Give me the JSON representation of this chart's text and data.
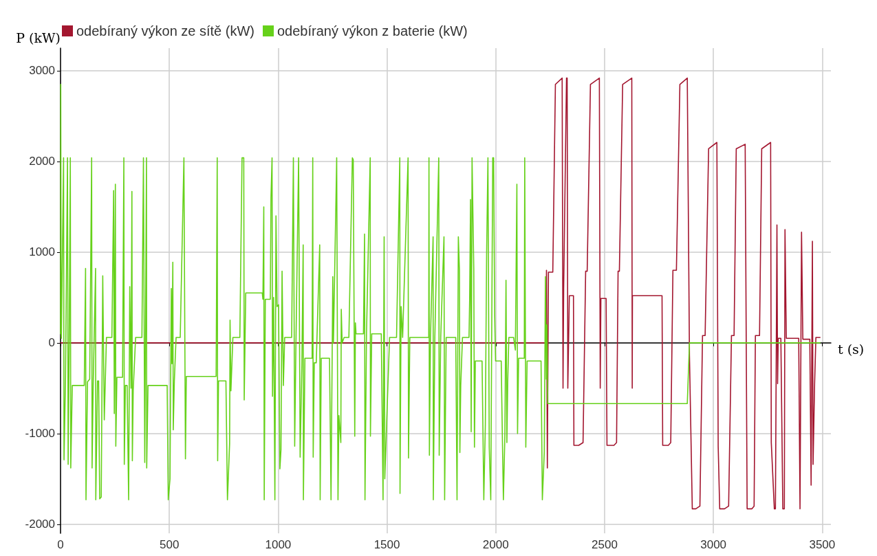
{
  "chart_data": {
    "type": "line",
    "xlabel": "t (s)",
    "ylabel": "P (kW)",
    "xlim": [
      0,
      3540
    ],
    "xticks": [
      0,
      500,
      1000,
      1500,
      2000,
      2500,
      3000,
      3500
    ],
    "ylim": [
      -2100,
      3250
    ],
    "yticks": [
      -2000,
      -1000,
      0,
      1000,
      2000,
      3000
    ],
    "grid": true,
    "legend": "top left",
    "marker": "none",
    "line_style": "solid",
    "series": [
      {
        "name": "odebíraný výkon ze sítě (kW)",
        "color": "#a3162f",
        "x": [
          0,
          2231,
          2233,
          2237,
          2242,
          2262,
          2274,
          2305,
          2309,
          2312,
          2325,
          2328,
          2331,
          2338,
          2357,
          2359,
          2381,
          2401,
          2413,
          2420,
          2435,
          2476,
          2480,
          2483,
          2507,
          2511,
          2543,
          2555,
          2562,
          2568,
          2583,
          2625,
          2627,
          2628,
          2764,
          2767,
          2793,
          2804,
          2814,
          2830,
          2846,
          2880,
          2890,
          2903,
          2919,
          2938,
          2950,
          2962,
          2978,
          3016,
          3022,
          3029,
          3051,
          3070,
          3083,
          3095,
          3105,
          3146,
          3155,
          3177,
          3187,
          3193,
          3212,
          3222,
          3263,
          3266,
          3280,
          3285,
          3292,
          3295,
          3298,
          3310,
          3319,
          3326,
          3329,
          3335,
          3392,
          3398,
          3405,
          3411,
          3443,
          3449,
          3455,
          3458,
          3465,
          3471,
          3490
        ],
        "values": [
          0,
          0,
          800,
          -1380,
          780,
          780,
          2850,
          2920,
          -500,
          600,
          2920,
          2920,
          -500,
          520,
          520,
          -1130,
          -1130,
          -1100,
          790,
          790,
          2850,
          2920,
          -500,
          490,
          490,
          -1130,
          -1130,
          -1100,
          790,
          790,
          2850,
          2920,
          -500,
          520,
          520,
          -1130,
          -1130,
          -1100,
          800,
          800,
          2850,
          2920,
          -140,
          -1830,
          -1830,
          -1800,
          80,
          80,
          2140,
          2210,
          -1140,
          -1830,
          -1830,
          -1800,
          80,
          80,
          2140,
          2190,
          -1830,
          -1830,
          -1800,
          80,
          80,
          2140,
          2210,
          -1100,
          -1830,
          -1830,
          1300,
          -450,
          50,
          50,
          -1830,
          -1830,
          1250,
          50,
          50,
          -1830,
          1220,
          40,
          40,
          -1570,
          1120,
          -1340,
          -460,
          60,
          60
        ]
      },
      {
        "name": "odebíraný výkon z baterie (kW)",
        "color": "#66d11a",
        "x": [
          0,
          1,
          3,
          4,
          14,
          16,
          23,
          32,
          35,
          40,
          45,
          47,
          54,
          109,
          115,
          117,
          124,
          134,
          143,
          145,
          150,
          161,
          162,
          170,
          175,
          180,
          187,
          194,
          201,
          211,
          236,
          244,
          247,
          252,
          254,
          259,
          285,
          291,
          293,
          298,
          306,
          313,
          318,
          324,
          328,
          330,
          334,
          345,
          374,
          381,
          387,
          395,
          396,
          402,
          490,
          495,
          503,
          509,
          512,
          516,
          518,
          523,
          531,
          550,
          567,
          574,
          578,
          715,
          720,
          722,
          726,
          760,
          767,
          777,
          779,
          783,
          792,
          824,
          834,
          842,
          844,
          851,
          927,
          930,
          934,
          936,
          941,
          964,
          967,
          972,
          974,
          979,
          985,
          990,
          995,
          1002,
          1008,
          1013,
          1018,
          1024,
          1030,
          1062,
          1070,
          1076,
          1081,
          1094,
          1101,
          1109,
          1115,
          1116,
          1123,
          1156,
          1159,
          1161,
          1166,
          1175,
          1191,
          1193,
          1198,
          1236,
          1243,
          1251,
          1254,
          1269,
          1275,
          1279,
          1288,
          1290,
          1294,
          1303,
          1325,
          1341,
          1345,
          1352,
          1355,
          1358,
          1392,
          1397,
          1399,
          1406,
          1423,
          1424,
          1430,
          1474,
          1482,
          1487,
          1490,
          1500,
          1512,
          1544,
          1559,
          1560,
          1565,
          1572,
          1597,
          1599,
          1605,
          1692,
          1693,
          1695,
          1700,
          1712,
          1713,
          1720,
          1738,
          1740,
          1747,
          1762,
          1765,
          1772,
          1816,
          1822,
          1828,
          1833,
          1835,
          1839,
          1847,
          1877,
          1880,
          1884,
          1887,
          1891,
          1899,
          1902,
          1906,
          1937,
          1945,
          1952,
          1958,
          1964,
          1970,
          1977,
          1986,
          1990,
          1995,
          1999,
          2025,
          2030,
          2035,
          2042,
          2047,
          2051,
          2055,
          2060,
          2082,
          2090,
          2097,
          2100,
          2105,
          2131,
          2133,
          2138,
          2144,
          2208,
          2214,
          2223,
          2228,
          2232,
          2235,
          2239,
          2880,
          2890,
          3490
        ],
        "values": [
          100,
          2850,
          80,
          50,
          2040,
          -1290,
          -380,
          2040,
          -1340,
          50,
          2040,
          -1380,
          -470,
          -470,
          820,
          -1730,
          -430,
          -400,
          2040,
          -1380,
          -470,
          820,
          -1730,
          -420,
          -420,
          -1720,
          -1700,
          740,
          -850,
          60,
          60,
          1680,
          -780,
          1750,
          -1140,
          -380,
          -380,
          2040,
          -1340,
          -470,
          -470,
          -1730,
          620,
          -500,
          1670,
          -1300,
          -520,
          60,
          60,
          2040,
          -1320,
          2040,
          -1380,
          -470,
          -470,
          -1730,
          -1500,
          600,
          -230,
          890,
          -960,
          -420,
          60,
          60,
          2040,
          -1280,
          -370,
          -370,
          2040,
          -1300,
          -420,
          -420,
          -1730,
          -1110,
          250,
          -530,
          60,
          60,
          2040,
          2040,
          -630,
          550,
          550,
          480,
          1500,
          -1730,
          480,
          480,
          1600,
          2040,
          -590,
          500,
          -1730,
          1400,
          400,
          420,
          -1390,
          -1180,
          790,
          -470,
          60,
          60,
          2040,
          -1140,
          -150,
          2040,
          -1260,
          -250,
          1080,
          -1730,
          -170,
          -170,
          2040,
          -1260,
          -220,
          -220,
          1080,
          -1730,
          -170,
          -170,
          -1730,
          730,
          0,
          2040,
          -1730,
          -800,
          -1100,
          370,
          0,
          60,
          60,
          2040,
          2020,
          -1030,
          220,
          100,
          100,
          1200,
          -1730,
          100,
          2040,
          -1030,
          100,
          100,
          -1730,
          1170,
          -1500,
          -780,
          60,
          60,
          2040,
          -1660,
          400,
          60,
          2040,
          -1270,
          60,
          60,
          2040,
          -1240,
          60,
          1170,
          -1730,
          60,
          2040,
          -1240,
          60,
          1170,
          -1730,
          60,
          60,
          -1730,
          1170,
          800,
          -1210,
          -470,
          60,
          60,
          480,
          1580,
          -980,
          2040,
          800,
          -1150,
          -200,
          -200,
          -1730,
          -900,
          1000,
          2040,
          -1150,
          -1730,
          2040,
          2040,
          300,
          -200,
          -200,
          -1000,
          -1730,
          -1000,
          690,
          -1100,
          -420,
          60,
          60,
          -80,
          1750,
          -1000,
          -170,
          -170,
          2040,
          -1150,
          -200,
          -200,
          -1730,
          -1200,
          730,
          -400,
          200,
          -670,
          -670,
          0,
          0
        ]
      }
    ]
  }
}
